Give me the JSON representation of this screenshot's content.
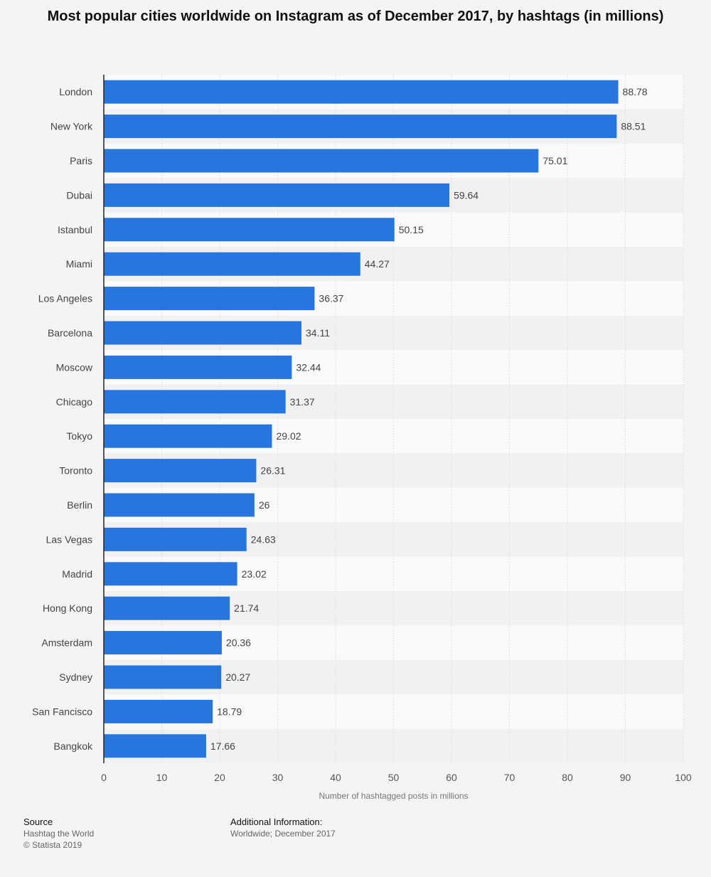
{
  "chart_data": {
    "type": "bar",
    "orientation": "horizontal",
    "title": "Most popular cities worldwide on Instagram as of December 2017, by hashtags (in millions)",
    "xlabel": "Number of hashtagged posts in millions",
    "xlim": [
      0,
      100
    ],
    "xticks": [
      0,
      10,
      20,
      30,
      40,
      50,
      60,
      70,
      80,
      90,
      100
    ],
    "categories": [
      "London",
      "New York",
      "Paris",
      "Dubai",
      "Istanbul",
      "Miami",
      "Los Angeles",
      "Barcelona",
      "Moscow",
      "Chicago",
      "Tokyo",
      "Toronto",
      "Berlin",
      "Las Vegas",
      "Madrid",
      "Hong Kong",
      "Amsterdam",
      "Sydney",
      "San Fancisco",
      "Bangkok"
    ],
    "values": [
      88.78,
      88.51,
      75.01,
      59.64,
      50.15,
      44.27,
      36.37,
      34.11,
      32.44,
      31.37,
      29.02,
      26.31,
      26,
      24.63,
      23.02,
      21.74,
      20.36,
      20.27,
      18.79,
      17.66
    ],
    "value_labels": [
      "88.78",
      "88.51",
      "75.01",
      "59.64",
      "50.15",
      "44.27",
      "36.37",
      "34.11",
      "32.44",
      "31.37",
      "29.02",
      "26.31",
      "26",
      "24.63",
      "23.02",
      "21.74",
      "20.36",
      "20.27",
      "18.79",
      "17.66"
    ],
    "bar_color": "#2876dd",
    "grid": true,
    "legend": "none"
  },
  "footer": {
    "source_heading": "Source",
    "source_lines": [
      "Hashtag the World",
      "© Statista 2019"
    ],
    "info_heading": "Additional Information:",
    "info_lines": [
      "Worldwide; December 2017"
    ]
  }
}
